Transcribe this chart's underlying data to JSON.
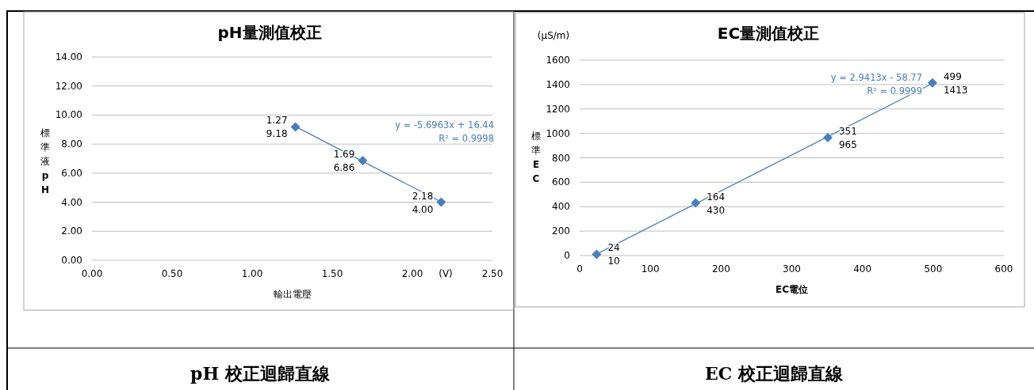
{
  "chart_data": [
    {
      "type": "scatter",
      "title": "pH量測值校正",
      "xlabel": "輸出電壓",
      "ylabel": "標準液pH",
      "xlim": [
        0,
        2.5
      ],
      "ylim": [
        0,
        14
      ],
      "xticks": [
        {
          "value": 0,
          "label": "0.00"
        },
        {
          "value": 0.5,
          "label": "0.50"
        },
        {
          "value": 1,
          "label": "1.00"
        },
        {
          "value": 1.5,
          "label": "1.50"
        },
        {
          "value": 2,
          "label": "2.00"
        },
        {
          "value": 2.5,
          "label": "2.50"
        }
      ],
      "yticks": [
        {
          "value": 0,
          "label": "0.00"
        },
        {
          "value": 2,
          "label": "2.00"
        },
        {
          "value": 4,
          "label": "4.00"
        },
        {
          "value": 6,
          "label": "6.00"
        },
        {
          "value": 8,
          "label": "8.00"
        },
        {
          "value": 10,
          "label": "10.00"
        },
        {
          "value": 12,
          "label": "12.00"
        },
        {
          "value": 14,
          "label": "14.00"
        }
      ],
      "grid": "y",
      "legend": false,
      "series": [
        {
          "type": "scatter",
          "marker": "diamond",
          "color": "#4a7ebb",
          "x": [
            1.27,
            1.69,
            2.18
          ],
          "values": [
            9.18,
            6.86,
            4.0
          ],
          "value_labels": [
            "9.18",
            "6.86",
            "4.00"
          ]
        },
        {
          "type": "line",
          "marker": "none",
          "color": "#4a7ebb",
          "x": [
            1.27,
            2.18
          ],
          "values": [
            9.21,
            4.02
          ]
        }
      ],
      "annotations": [
        "y = -5.6963x + 16.44\nR² = 0.9998",
        "(V)",
        "pH 校正迴歸直線",
        {
          "text": "1.27",
          "x": 1.27,
          "y": 9.18
        },
        {
          "text": "1.69",
          "x": 1.69,
          "y": 6.86
        },
        {
          "text": "2.18",
          "x": 2.18,
          "y": 4.0
        }
      ]
    },
    {
      "type": "scatter",
      "title": "EC量測值校正",
      "xlabel": "EC電位",
      "ylabel": "標準EC",
      "xlim": [
        0,
        600
      ],
      "ylim": [
        0,
        1600
      ],
      "xticks": [
        0,
        100,
        200,
        300,
        400,
        500,
        600
      ],
      "yticks": [
        0,
        200,
        400,
        600,
        800,
        1000,
        1200,
        1400,
        1600
      ],
      "grid": "y",
      "legend": false,
      "series": [
        {
          "type": "scatter",
          "marker": "diamond",
          "color": "#4a7ebb",
          "x": [
            24,
            164,
            351,
            499
          ],
          "values": [
            10,
            430,
            965,
            1413
          ],
          "value_labels": [
            "10",
            "430",
            "965",
            "1413"
          ]
        },
        {
          "type": "line",
          "marker": "none",
          "color": "#4a7ebb",
          "x": [
            24,
            499
          ],
          "values": [
            12,
            1409
          ]
        }
      ],
      "annotations": [
        "y = 2.9413x - 58.77\nR² = 0.9999",
        "(μS/m)",
        "EC 校正迴歸直線",
        {
          "text": "24",
          "x": 24,
          "y": 10
        },
        {
          "text": "164",
          "x": 164,
          "y": 430
        },
        {
          "text": "351",
          "x": 351,
          "y": 965
        },
        {
          "text": "499",
          "x": 499,
          "y": 1413
        }
      ]
    }
  ]
}
